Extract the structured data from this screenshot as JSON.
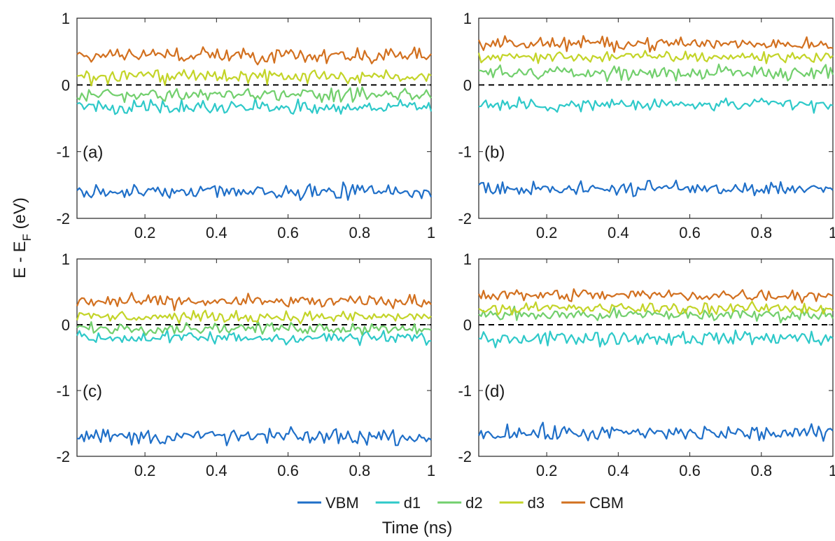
{
  "chart_data": {
    "type": "line",
    "xlabel": "Time (ns)",
    "ylabel": "E - E",
    "ylabel_sub": "F",
    "ylabel_unit": "(eV)",
    "xlim": [
      0.01,
      1.0
    ],
    "ylim": [
      -2,
      1
    ],
    "xticks": [
      "0.2",
      "0.4",
      "0.6",
      "0.8",
      "1"
    ],
    "yticks": [
      "-2",
      "-1",
      "0",
      "1"
    ],
    "reference_line": {
      "y": 0,
      "style": "dashed",
      "color": "#000000"
    },
    "legend": {
      "placement": "bottom-center",
      "orientation": "horizontal"
    },
    "series_styles": [
      {
        "name": "VBM",
        "color": "#1f6fc8"
      },
      {
        "name": "d1",
        "color": "#2ec9c9"
      },
      {
        "name": "d2",
        "color": "#72cf6d"
      },
      {
        "name": "d3",
        "color": "#c3d428"
      },
      {
        "name": "CBM",
        "color": "#d2701f"
      }
    ],
    "panels": [
      {
        "label": "(a)",
        "means": {
          "VBM": -1.6,
          "d1": -0.33,
          "d2": -0.15,
          "d3": 0.12,
          "CBM": 0.45
        },
        "noise": {
          "VBM": 0.09,
          "d1": 0.09,
          "d2": 0.08,
          "d3": 0.08,
          "CBM": 0.09
        }
      },
      {
        "label": "(b)",
        "means": {
          "VBM": -1.55,
          "d1": -0.3,
          "d2": 0.18,
          "d3": 0.42,
          "CBM": 0.62
        },
        "noise": {
          "VBM": 0.09,
          "d1": 0.08,
          "d2": 0.08,
          "d3": 0.07,
          "CBM": 0.08
        }
      },
      {
        "label": "(c)",
        "means": {
          "VBM": -1.7,
          "d1": -0.2,
          "d2": -0.05,
          "d3": 0.12,
          "CBM": 0.35
        },
        "noise": {
          "VBM": 0.1,
          "d1": 0.08,
          "d2": 0.07,
          "d3": 0.07,
          "CBM": 0.08
        }
      },
      {
        "label": "(d)",
        "means": {
          "VBM": -1.65,
          "d1": -0.2,
          "d2": 0.15,
          "d3": 0.25,
          "CBM": 0.45
        },
        "noise": {
          "VBM": 0.1,
          "d1": 0.09,
          "d2": 0.08,
          "d3": 0.07,
          "CBM": 0.08
        }
      }
    ]
  }
}
